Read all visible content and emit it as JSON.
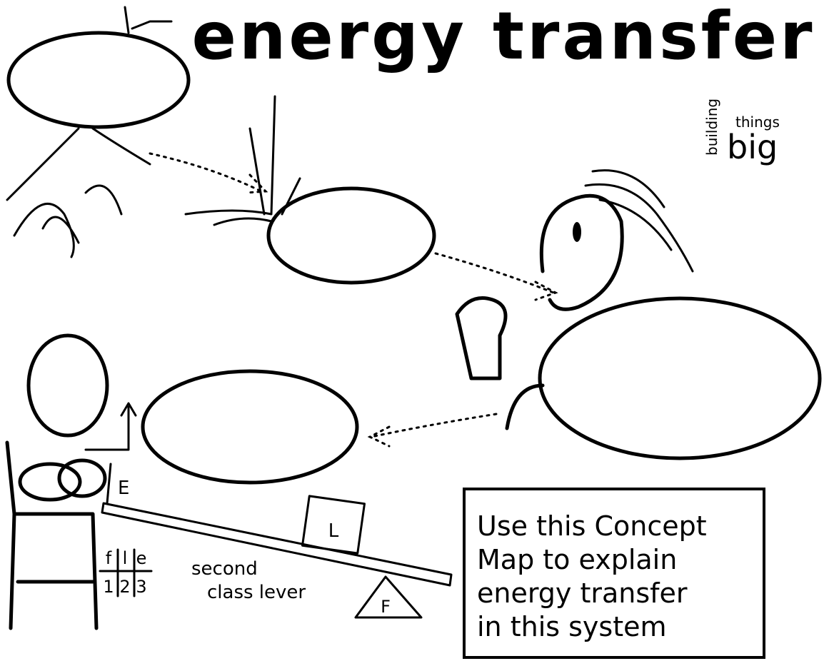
{
  "header": {
    "title": "energy transfer",
    "logo": {
      "line1": "building",
      "line2": "things",
      "line3": "big"
    }
  },
  "lever": {
    "effort": "E",
    "load": "L",
    "fulcrum": "F",
    "order": {
      "letters": [
        "f",
        "l",
        "e"
      ],
      "numbers": [
        "1",
        "2",
        "3"
      ]
    },
    "caption": [
      "second",
      "class lever"
    ]
  },
  "instructions": {
    "lines": [
      "Use this Concept",
      "Map to explain",
      "energy transfer",
      "in this system"
    ]
  }
}
